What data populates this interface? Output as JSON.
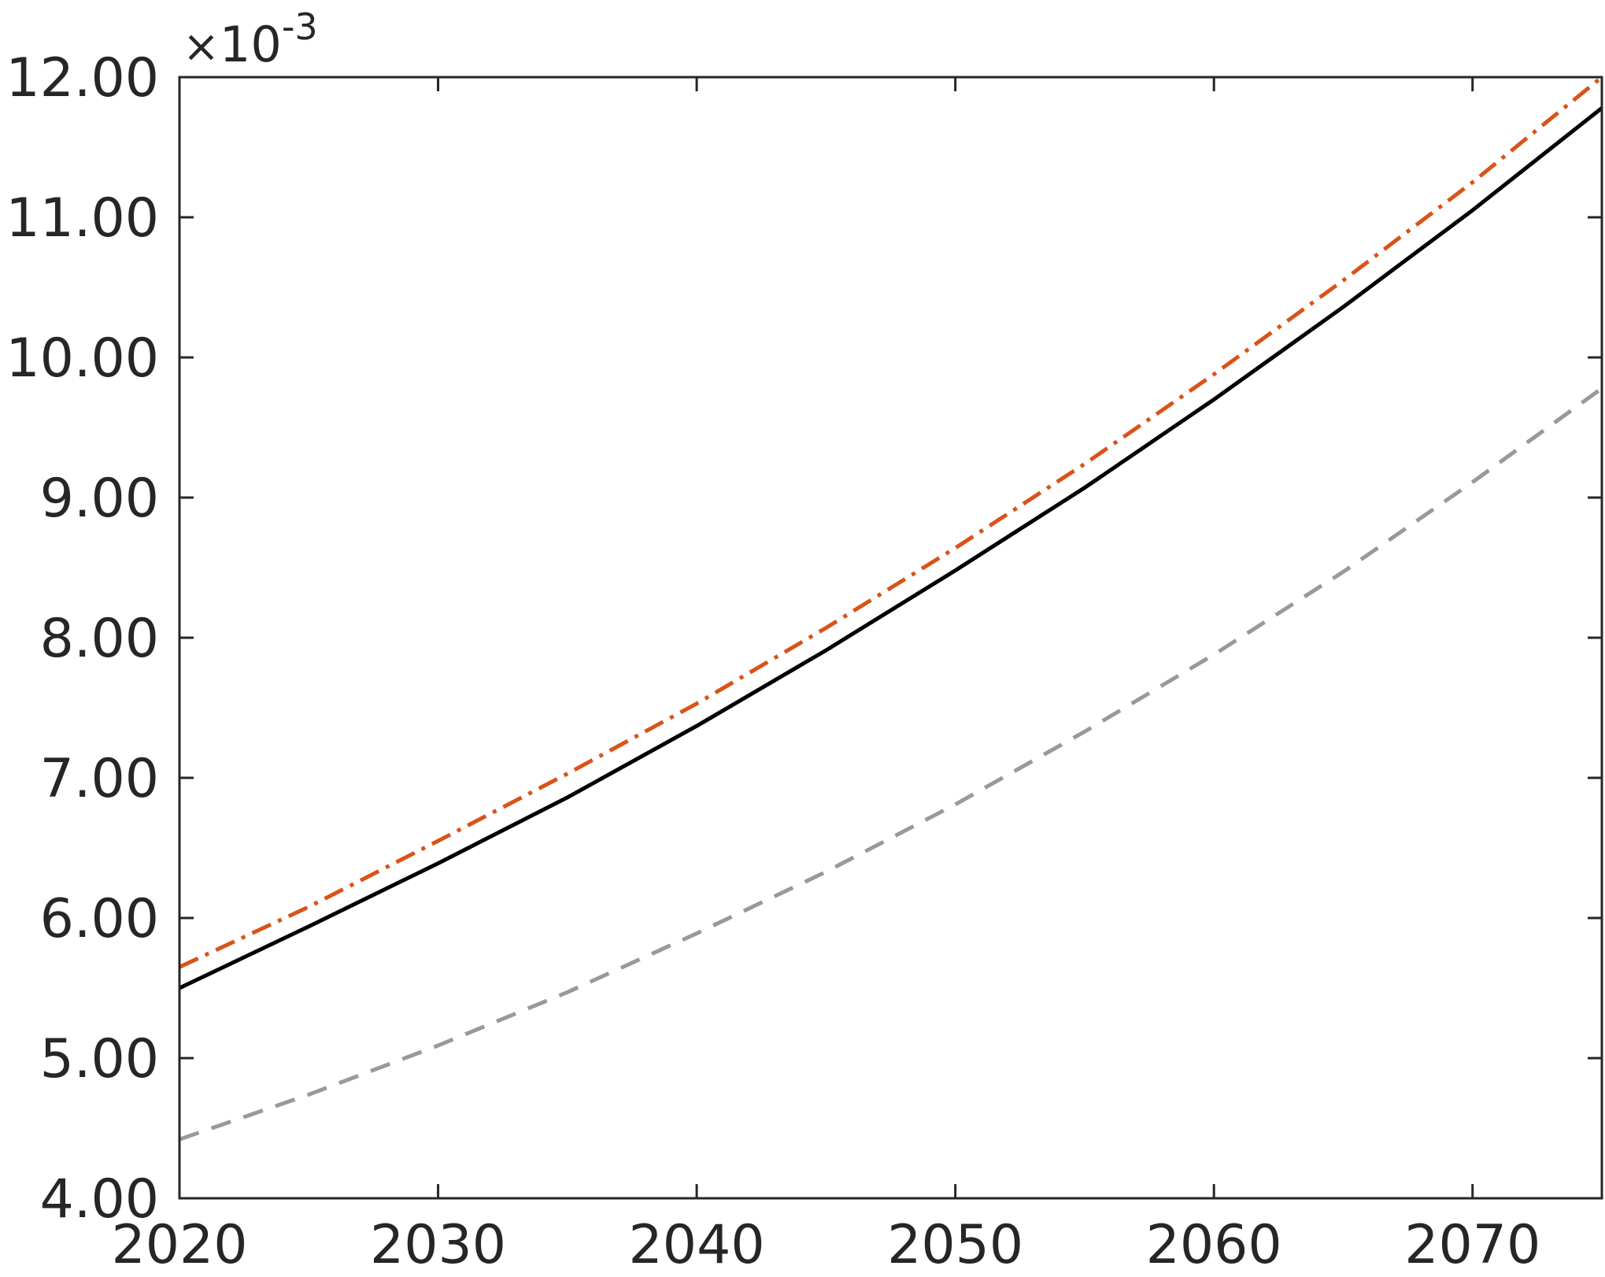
{
  "chart_data": {
    "type": "line",
    "title": "",
    "xlabel": "",
    "ylabel": "",
    "xlim": [
      2020,
      2075
    ],
    "ylim": [
      4.0,
      12.0
    ],
    "y_exponent_label": {
      "times": "×",
      "base": "10",
      "power": "-3"
    },
    "x_ticks": [
      2020,
      2030,
      2040,
      2050,
      2060,
      2070
    ],
    "x_tick_labels": [
      "2020",
      "2030",
      "2040",
      "2050",
      "2060",
      "2070"
    ],
    "y_ticks": [
      4,
      5,
      6,
      7,
      8,
      9,
      10,
      11,
      12
    ],
    "y_tick_labels": [
      "4.00",
      "5.00",
      "6.00",
      "7.00",
      "8.00",
      "9.00",
      "10.00",
      "11.00",
      "12.00"
    ],
    "grid": false,
    "x": [
      2020,
      2025,
      2030,
      2035,
      2040,
      2045,
      2050,
      2055,
      2060,
      2065,
      2070,
      2075
    ],
    "series": [
      {
        "color": "#000000",
        "style": "solid",
        "values": [
          5.5,
          5.94,
          6.39,
          6.86,
          7.37,
          7.91,
          8.48,
          9.07,
          9.7,
          10.36,
          11.05,
          11.78
        ]
      },
      {
        "color": "#D95319",
        "style": "dashdot",
        "values": [
          5.65,
          6.08,
          6.55,
          7.03,
          7.53,
          8.07,
          8.64,
          9.24,
          9.88,
          10.55,
          11.25,
          12.0
        ]
      },
      {
        "color": "#999999",
        "style": "dashed",
        "values": [
          4.42,
          4.74,
          5.09,
          5.47,
          5.89,
          6.33,
          6.81,
          7.33,
          7.88,
          8.47,
          9.11,
          9.78
        ]
      }
    ]
  }
}
